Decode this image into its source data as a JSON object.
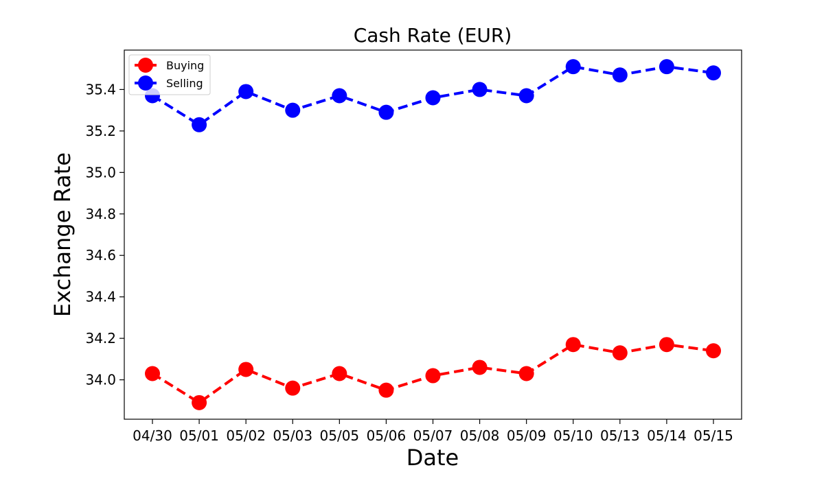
{
  "chart_data": {
    "type": "line",
    "title": "Cash Rate (EUR)",
    "xlabel": "Date",
    "ylabel": "Exchange Rate",
    "categories": [
      "04/30",
      "05/01",
      "05/02",
      "05/03",
      "05/05",
      "05/06",
      "05/07",
      "05/08",
      "05/09",
      "05/10",
      "05/13",
      "05/14",
      "05/15"
    ],
    "series": [
      {
        "name": "Buying",
        "color": "#ff0000",
        "values": [
          34.03,
          33.89,
          34.05,
          33.96,
          34.03,
          33.95,
          34.02,
          34.06,
          34.03,
          34.17,
          34.13,
          34.17,
          34.14
        ]
      },
      {
        "name": "Selling",
        "color": "#0000ff",
        "values": [
          35.37,
          35.23,
          35.39,
          35.3,
          35.37,
          35.29,
          35.36,
          35.4,
          35.37,
          35.51,
          35.47,
          35.51,
          35.48
        ]
      }
    ],
    "yticks": [
      "34.0",
      "34.2",
      "34.4",
      "34.6",
      "34.8",
      "35.0",
      "35.2",
      "35.4"
    ],
    "ylim": [
      33.81,
      35.59
    ],
    "line_style": "dashed",
    "marker": "circle",
    "grid": false,
    "legend_position": "top-left"
  }
}
